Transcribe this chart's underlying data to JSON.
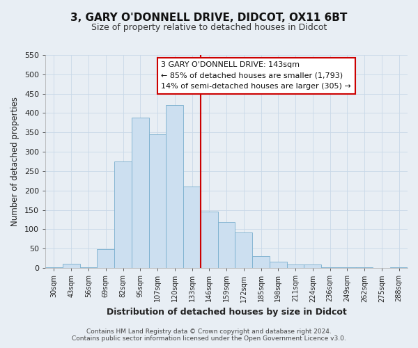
{
  "title": "3, GARY O'DONNELL DRIVE, DIDCOT, OX11 6BT",
  "subtitle": "Size of property relative to detached houses in Didcot",
  "xlabel": "Distribution of detached houses by size in Didcot",
  "ylabel": "Number of detached properties",
  "bar_color": "#ccdff0",
  "bar_edge_color": "#7aafce",
  "categories": [
    "30sqm",
    "43sqm",
    "56sqm",
    "69sqm",
    "82sqm",
    "95sqm",
    "107sqm",
    "120sqm",
    "133sqm",
    "146sqm",
    "159sqm",
    "172sqm",
    "185sqm",
    "198sqm",
    "211sqm",
    "224sqm",
    "236sqm",
    "249sqm",
    "262sqm",
    "275sqm",
    "288sqm"
  ],
  "values": [
    2,
    11,
    2,
    48,
    275,
    388,
    346,
    420,
    210,
    145,
    118,
    92,
    30,
    17,
    10,
    10,
    2,
    2,
    2,
    0,
    2
  ],
  "vline_index": 9,
  "vline_color": "#cc0000",
  "ylim": [
    0,
    550
  ],
  "yticks": [
    0,
    50,
    100,
    150,
    200,
    250,
    300,
    350,
    400,
    450,
    500,
    550
  ],
  "annotation_title": "3 GARY O'DONNELL DRIVE: 143sqm",
  "annotation_line1": "← 85% of detached houses are smaller (1,793)",
  "annotation_line2": "14% of semi-detached houses are larger (305) →",
  "footer1": "Contains HM Land Registry data © Crown copyright and database right 2024.",
  "footer2": "Contains public sector information licensed under the Open Government Licence v3.0.",
  "grid_color": "#c8d8e8",
  "background_color": "#e8eef4",
  "title_fontsize": 11,
  "subtitle_fontsize": 9
}
